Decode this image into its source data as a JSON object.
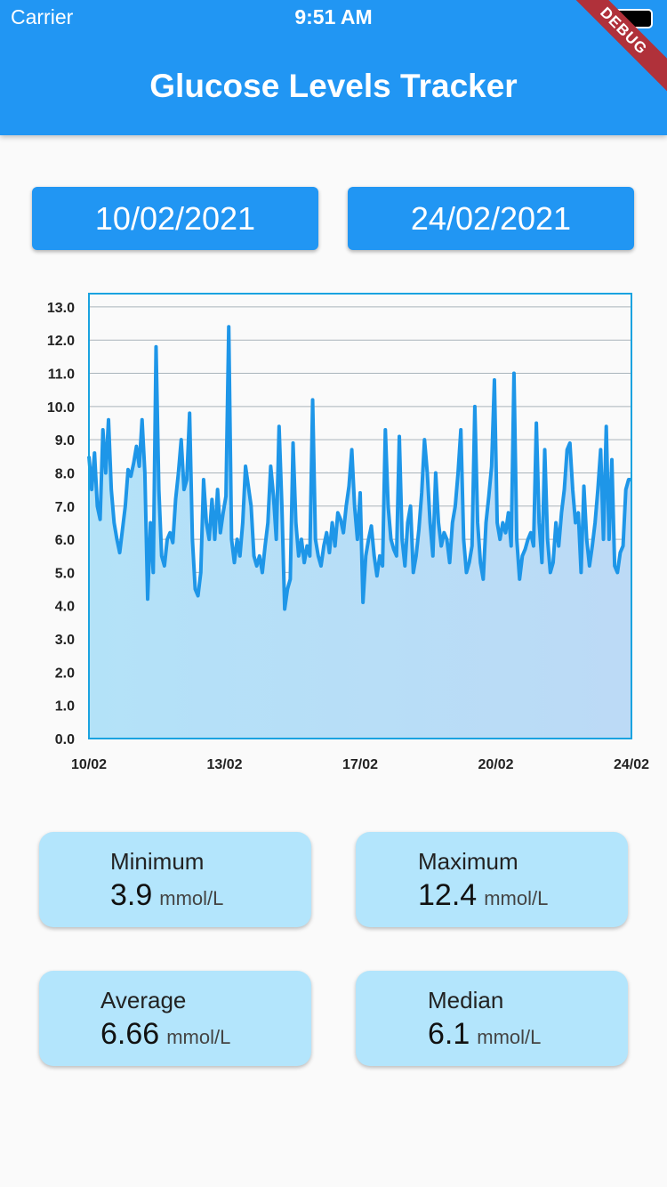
{
  "status_bar": {
    "carrier": "Carrier",
    "time": "9:51 AM"
  },
  "debug_banner": "DEBUG",
  "app_bar": {
    "title": "Glucose Levels Tracker"
  },
  "date_range": {
    "start": "10/02/2021",
    "end": "24/02/2021"
  },
  "chart_data": {
    "type": "line",
    "values": [
      8.5,
      7.5,
      8.6,
      7.0,
      6.6,
      9.3,
      8.0,
      9.6,
      7.5,
      6.5,
      6.0,
      5.6,
      6.3,
      7.0,
      8.1,
      7.9,
      8.3,
      8.8,
      8.2,
      9.6,
      8.0,
      4.2,
      6.5,
      5.0,
      11.8,
      7.5,
      5.5,
      5.2,
      6.0,
      6.2,
      5.9,
      7.2,
      8.0,
      9.0,
      7.5,
      7.8,
      9.8,
      6.0,
      4.5,
      4.3,
      5.0,
      7.8,
      6.5,
      6.0,
      7.2,
      6.0,
      7.5,
      6.2,
      6.8,
      7.3,
      12.4,
      6.0,
      5.3,
      6.0,
      5.5,
      6.5,
      8.2,
      7.6,
      7.0,
      5.5,
      5.2,
      5.5,
      5.0,
      5.8,
      6.5,
      8.2,
      7.3,
      6.0,
      9.4,
      7.0,
      3.9,
      4.5,
      4.8,
      8.9,
      6.5,
      5.5,
      6.0,
      5.3,
      5.8,
      5.5,
      10.2,
      6.0,
      5.5,
      5.2,
      5.8,
      6.2,
      5.6,
      6.5,
      5.8,
      6.8,
      6.6,
      6.2,
      7.0,
      7.6,
      8.7,
      7.0,
      6.0,
      7.4,
      4.1,
      5.5,
      6.0,
      6.4,
      5.5,
      4.9,
      5.5,
      5.2,
      9.3,
      7.0,
      6.0,
      5.7,
      5.5,
      9.1,
      6.0,
      5.2,
      6.5,
      7.0,
      5.0,
      5.5,
      6.3,
      7.4,
      9.0,
      8.0,
      6.5,
      5.5,
      8.0,
      6.5,
      5.8,
      6.2,
      6.0,
      5.3,
      6.5,
      7.0,
      8.0,
      9.3,
      6.0,
      5.0,
      5.3,
      5.8,
      10.0,
      6.5,
      5.3,
      4.8,
      6.5,
      7.3,
      8.2,
      10.8,
      6.5,
      6.0,
      6.5,
      6.2,
      6.8,
      5.8,
      11.0,
      6.0,
      4.8,
      5.5,
      5.7,
      6.0,
      6.2,
      5.8,
      9.5,
      6.5,
      5.3,
      8.7,
      6.0,
      5.0,
      5.3,
      6.5,
      5.8,
      6.8,
      7.5,
      8.7,
      8.9,
      7.5,
      6.5,
      6.8,
      5.0,
      7.6,
      6.0,
      5.2,
      5.8,
      6.5,
      7.5,
      8.7,
      6.0,
      9.4,
      6.0,
      8.4,
      5.2,
      5.0,
      5.6,
      5.8,
      7.5,
      7.8,
      7.8
    ],
    "color": "#1e96e8",
    "ylim": [
      0,
      13.4
    ],
    "yticks": [
      {
        "value": 0,
        "label": "0.0"
      },
      {
        "value": 1,
        "label": "1.0"
      },
      {
        "value": 2,
        "label": "2.0"
      },
      {
        "value": 3,
        "label": "3.0"
      },
      {
        "value": 4,
        "label": "4.0"
      },
      {
        "value": 5,
        "label": "5.0"
      },
      {
        "value": 6,
        "label": "6.0"
      },
      {
        "value": 7,
        "label": "7.0"
      },
      {
        "value": 8,
        "label": "8.0"
      },
      {
        "value": 9,
        "label": "9.0"
      },
      {
        "value": 10,
        "label": "10.0"
      },
      {
        "value": 11,
        "label": "11.0"
      },
      {
        "value": 12,
        "label": "12.0"
      },
      {
        "value": 13,
        "label": "13.0"
      }
    ],
    "xtick_labels": [
      "10/02",
      "13/02",
      "17/02",
      "20/02",
      "24/02"
    ],
    "grid": true
  },
  "stats": [
    {
      "label": "Minimum",
      "value": 3.9,
      "unit": "mmol/L"
    },
    {
      "label": "Maximum",
      "value": 12.4,
      "unit": "mmol/L"
    },
    {
      "label": "Average",
      "value": 6.66,
      "unit": "mmol/L"
    },
    {
      "label": "Median",
      "value": 6.1,
      "unit": "mmol/L"
    }
  ]
}
